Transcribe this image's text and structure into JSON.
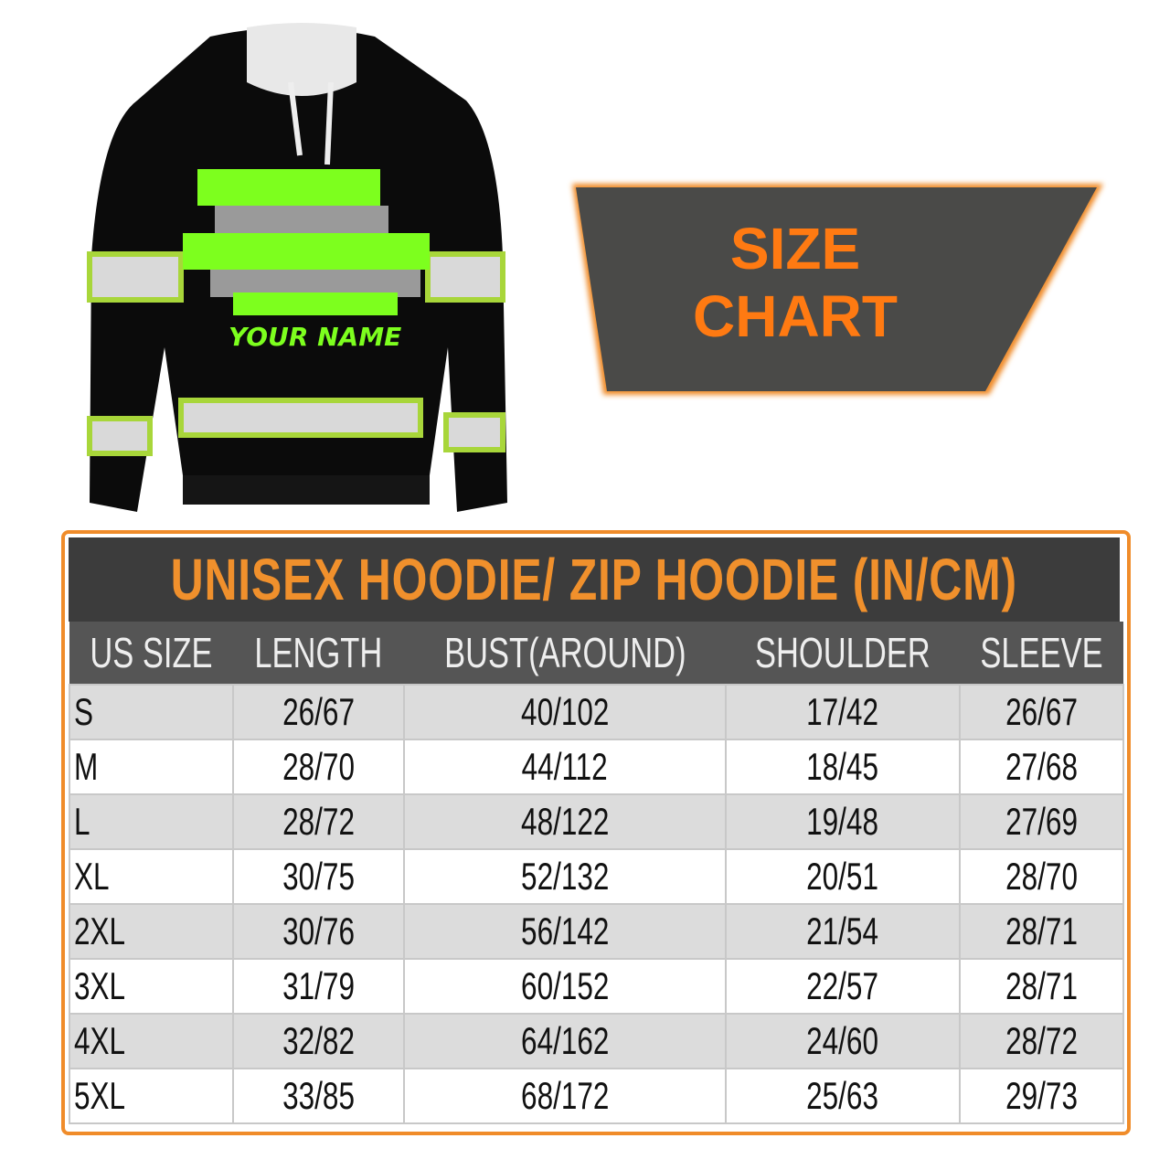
{
  "product_image": {
    "print_text": "YOUR NAME",
    "colors": {
      "body": "#0a0a0a",
      "accent_green": "#7dff1e",
      "reflective_stripe": "#d9d9d9",
      "stripe_edge": "#a8d63a"
    }
  },
  "banner": {
    "line1": "SIZE",
    "line2": "CHART",
    "text_color": "#ff7a12",
    "background": "#4a4a48"
  },
  "table": {
    "title": "UNISEX HOODIE/ ZIP HOODIE (IN/CM)",
    "columns": [
      "US SIZE",
      "LENGTH",
      "BUST(AROUND)",
      "SHOULDER",
      "SLEEVE"
    ],
    "rows": [
      [
        "S",
        "26/67",
        "40/102",
        "17/42",
        "26/67"
      ],
      [
        "M",
        "28/70",
        "44/112",
        "18/45",
        "27/68"
      ],
      [
        "L",
        "28/72",
        "48/122",
        "19/48",
        "27/69"
      ],
      [
        "XL",
        "30/75",
        "52/132",
        "20/51",
        "28/70"
      ],
      [
        "2XL",
        "30/76",
        "56/142",
        "21/54",
        "28/71"
      ],
      [
        "3XL",
        "31/79",
        "60/152",
        "22/57",
        "28/71"
      ],
      [
        "4XL",
        "32/82",
        "64/162",
        "24/60",
        "28/72"
      ],
      [
        "5XL",
        "33/85",
        "68/172",
        "25/63",
        "29/73"
      ]
    ],
    "border_color": "#f08c2a",
    "title_color": "#f0902c"
  }
}
